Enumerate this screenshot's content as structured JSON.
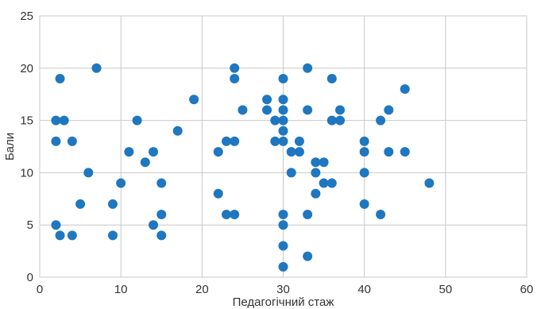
{
  "chart_data": {
    "type": "scatter",
    "title": "",
    "xlabel": "Педагогічний стаж",
    "ylabel": "Бали",
    "xlim": [
      0,
      60
    ],
    "ylim": [
      0,
      25
    ],
    "xticks": [
      0,
      10,
      20,
      30,
      40,
      50,
      60
    ],
    "yticks": [
      0,
      5,
      10,
      15,
      20,
      25
    ],
    "grid": true,
    "legend": "none",
    "marker_color": "#1f77c0",
    "points": [
      [
        2,
        15
      ],
      [
        2,
        13
      ],
      [
        2,
        5
      ],
      [
        2.5,
        19
      ],
      [
        2.5,
        4
      ],
      [
        3,
        15
      ],
      [
        4,
        13
      ],
      [
        4,
        4
      ],
      [
        5,
        7
      ],
      [
        6,
        10
      ],
      [
        7,
        20
      ],
      [
        9,
        7
      ],
      [
        9,
        4
      ],
      [
        10,
        9
      ],
      [
        11,
        12
      ],
      [
        12,
        15
      ],
      [
        13,
        11
      ],
      [
        14,
        12
      ],
      [
        14,
        5
      ],
      [
        15,
        9
      ],
      [
        15,
        6
      ],
      [
        15,
        4
      ],
      [
        17,
        14
      ],
      [
        19,
        17
      ],
      [
        22,
        12
      ],
      [
        22,
        8
      ],
      [
        23,
        13
      ],
      [
        23,
        6
      ],
      [
        24,
        20
      ],
      [
        24,
        19
      ],
      [
        24,
        13
      ],
      [
        24,
        6
      ],
      [
        25,
        16
      ],
      [
        28,
        17
      ],
      [
        28,
        16
      ],
      [
        29,
        15
      ],
      [
        29,
        13
      ],
      [
        30,
        19
      ],
      [
        30,
        17
      ],
      [
        30,
        16
      ],
      [
        30,
        15
      ],
      [
        30,
        14
      ],
      [
        30,
        13
      ],
      [
        30,
        6
      ],
      [
        30,
        5
      ],
      [
        30,
        3
      ],
      [
        30,
        1
      ],
      [
        31,
        12
      ],
      [
        31,
        10
      ],
      [
        32,
        13
      ],
      [
        32,
        12
      ],
      [
        33,
        20
      ],
      [
        33,
        16
      ],
      [
        33,
        6
      ],
      [
        33,
        2
      ],
      [
        34,
        11
      ],
      [
        34,
        10
      ],
      [
        34,
        8
      ],
      [
        35,
        11
      ],
      [
        35,
        9
      ],
      [
        36,
        19
      ],
      [
        36,
        15
      ],
      [
        36,
        9
      ],
      [
        37,
        16
      ],
      [
        37,
        15
      ],
      [
        40,
        13
      ],
      [
        40,
        12
      ],
      [
        40,
        10
      ],
      [
        40,
        7
      ],
      [
        42,
        15
      ],
      [
        42,
        6
      ],
      [
        43,
        16
      ],
      [
        43,
        12
      ],
      [
        45,
        18
      ],
      [
        45,
        12
      ],
      [
        48,
        9
      ]
    ]
  }
}
